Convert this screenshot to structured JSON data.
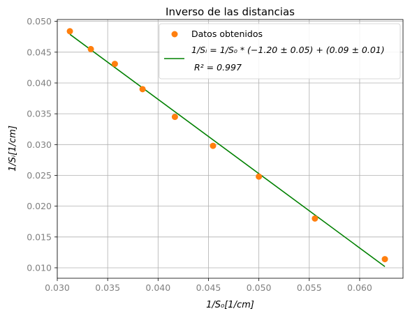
{
  "chart_data": {
    "type": "scatter",
    "title": "Inverso de las distancias",
    "xlabel": "1/S₀[1/cm]",
    "ylabel": "1/Sᵢ[1/cm]",
    "xlim": [
      0.03,
      0.0643
    ],
    "ylim": [
      0.0083,
      0.0503
    ],
    "grid": true,
    "legend_position": "top-right",
    "x_ticks": [
      0.03,
      0.035,
      0.04,
      0.045,
      0.05,
      0.055,
      0.06
    ],
    "x_tick_labels": [
      "0.030",
      "0.035",
      "0.040",
      "0.045",
      "0.050",
      "0.055",
      "0.060"
    ],
    "y_ticks": [
      0.01,
      0.015,
      0.02,
      0.025,
      0.03,
      0.035,
      0.04,
      0.045,
      0.05
    ],
    "y_tick_labels": [
      "0.010",
      "0.015",
      "0.020",
      "0.025",
      "0.030",
      "0.035",
      "0.040",
      "0.045",
      "0.050"
    ],
    "series": [
      {
        "name": "Datos obtenidos",
        "kind": "scatter",
        "color": "#ff7f0e",
        "x": [
          0.03125,
          0.03333,
          0.03571,
          0.03846,
          0.04167,
          0.04545,
          0.05,
          0.05556,
          0.0625
        ],
        "y": [
          0.0484,
          0.0455,
          0.0431,
          0.039,
          0.0345,
          0.0298,
          0.0248,
          0.018,
          0.0114
        ]
      },
      {
        "name": "1/Sᵢ = 1/S₀ * (−1.20 ± 0.05) + (0.09 ± 0.01)",
        "name_line2": "R² = 0.997",
        "kind": "line",
        "color": "#008000",
        "x": [
          0.03125,
          0.0625
        ],
        "y": [
          0.0479,
          0.0102
        ]
      }
    ]
  }
}
